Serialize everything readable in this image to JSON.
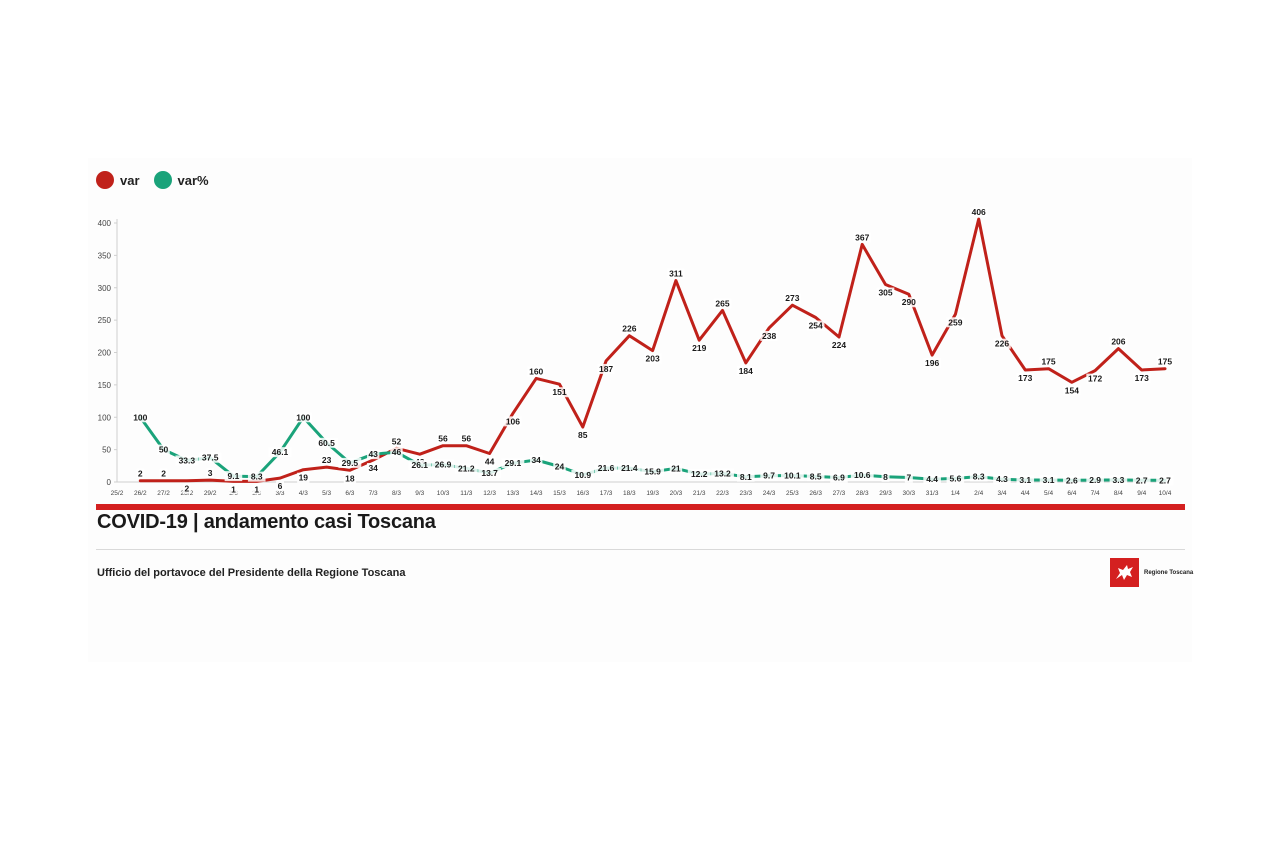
{
  "legend": [
    {
      "label": "var",
      "color": "#c0211a"
    },
    {
      "label": "var%",
      "color": "#1aa37a"
    }
  ],
  "title": "COVID-19 | andamento casi Toscana",
  "credit": "Ufficio del portavoce del Presidente della Regione Toscana",
  "logo_text": "Regione Toscana",
  "colors": {
    "red": "#c0211a",
    "green": "#1aa37a",
    "rule": "#d42020"
  },
  "chart_data": {
    "type": "line",
    "categories": [
      "25/2",
      "26/2",
      "27/2",
      "28/2",
      "29/2",
      "1/3",
      "2/3",
      "3/3",
      "4/3",
      "5/3",
      "6/3",
      "7/3",
      "8/3",
      "9/3",
      "10/3",
      "11/3",
      "12/3",
      "13/3",
      "14/3",
      "15/3",
      "16/3",
      "17/3",
      "18/3",
      "19/3",
      "20/3",
      "21/3",
      "22/3",
      "23/3",
      "24/3",
      "25/3",
      "26/3",
      "27/3",
      "28/3",
      "29/3",
      "30/3",
      "31/3",
      "1/4",
      "2/4",
      "3/4",
      "4/4",
      "5/4",
      "6/4",
      "7/4",
      "8/4",
      "9/4",
      "10/4"
    ],
    "series": [
      {
        "name": "var",
        "color": "#c0211a",
        "values": [
          null,
          2,
          2,
          2,
          3,
          1,
          1,
          6,
          19,
          23,
          18,
          34,
          52,
          43,
          56,
          56,
          44,
          106,
          160,
          151,
          85,
          187,
          226,
          203,
          311,
          219,
          265,
          184,
          238,
          273,
          254,
          224,
          367,
          305,
          290,
          196,
          259,
          406,
          226,
          173,
          175,
          154,
          172,
          206,
          173,
          175
        ],
        "labels": [
          "",
          "2",
          "2",
          "2",
          "3",
          "1",
          "1",
          "6",
          "19",
          "23",
          "18",
          "34",
          "52",
          "43",
          "56",
          "56",
          "44",
          "106",
          "160",
          "151",
          "85",
          "187",
          "226",
          "203",
          "311",
          "219",
          "265",
          "184",
          "238",
          "273",
          "254",
          "224",
          "367",
          "305",
          "290",
          "196",
          "259",
          "406",
          "226",
          "173",
          "175",
          "154",
          "172",
          "206",
          "173",
          "175"
        ]
      },
      {
        "name": "var%",
        "color": "#1aa37a",
        "values": [
          null,
          100,
          50,
          33.3,
          37.5,
          9.1,
          8.3,
          46.1,
          100,
          60.5,
          29.5,
          43,
          46,
          26.1,
          26.9,
          21.2,
          13.7,
          29.1,
          34,
          24,
          10.9,
          21.6,
          21.4,
          15.9,
          21,
          12.2,
          13.2,
          8.1,
          9.7,
          10.1,
          8.5,
          6.9,
          10.6,
          8,
          7,
          4.4,
          5.6,
          8.3,
          4.3,
          3.1,
          3.1,
          2.6,
          2.9,
          3.3,
          2.7,
          2.7
        ],
        "labels": [
          "",
          "100",
          "50",
          "33.3",
          "37.5",
          "9.1",
          "8.3",
          "46.1",
          "100",
          "60.5",
          "29.5",
          "43",
          "46",
          "26.1",
          "26.9",
          "21.2",
          "13.7",
          "29.1",
          "34",
          "24",
          "10.9",
          "21.6",
          "21.4",
          "15.9",
          "21",
          "12.2",
          "13.2",
          "8.1",
          "9.7",
          "10.1",
          "8.5",
          "6.9",
          "10.6",
          "8",
          "7",
          "4.4",
          "5.6",
          "8.3",
          "4.3",
          "3.1",
          "3.1",
          "2.6",
          "2.9",
          "3.3",
          "2.7",
          "2.7"
        ]
      }
    ],
    "yticks": [
      0,
      50,
      100,
      150,
      200,
      250,
      300,
      350,
      400
    ],
    "ylim": [
      0,
      400
    ],
    "grid": false
  }
}
